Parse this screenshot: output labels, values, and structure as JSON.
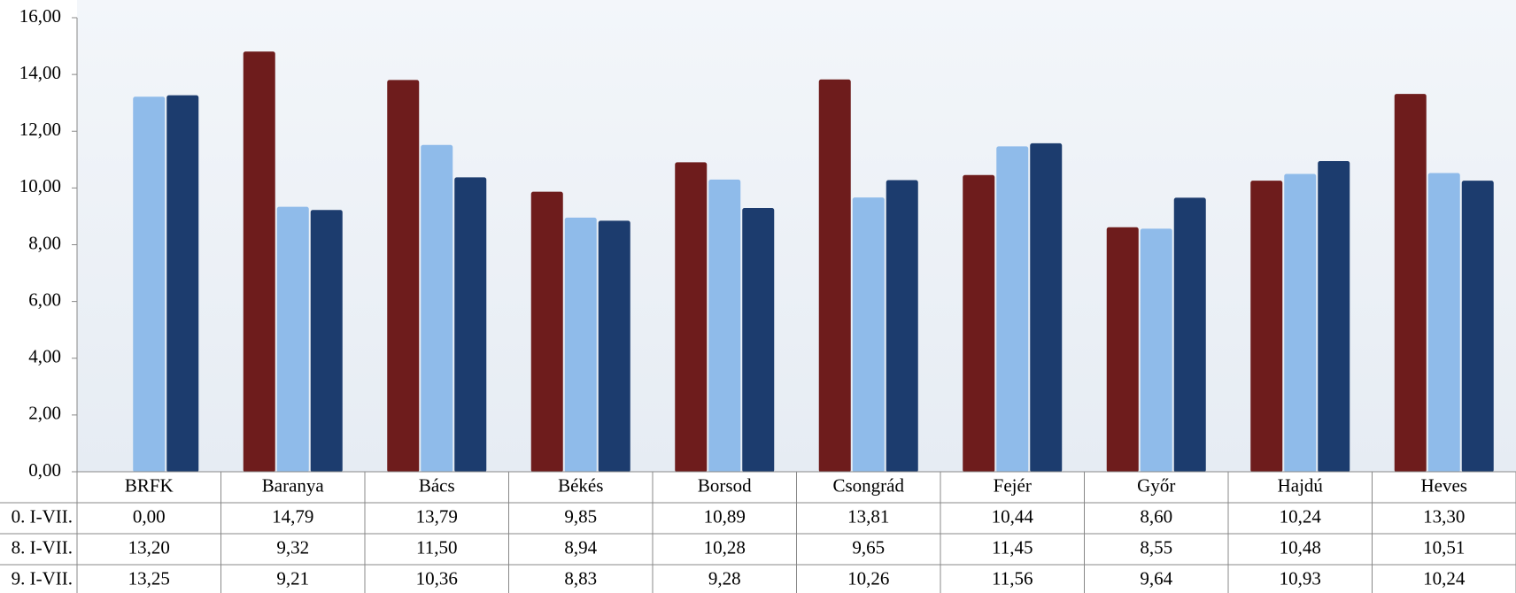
{
  "chart_data": {
    "type": "bar",
    "categories": [
      "BRFK",
      "Baranya",
      "Bács",
      "Békés",
      "Borsod",
      "Csongrád",
      "Fejér",
      "Győr",
      "Hajdú",
      "Heves"
    ],
    "series": [
      {
        "name": "0. I-VII.",
        "color": "#6e1c1c",
        "values": [
          0,
          14.79,
          13.79,
          9.85,
          10.89,
          13.81,
          10.44,
          8.6,
          10.24,
          13.3
        ],
        "value_labels": [
          "0,00",
          "14,79",
          "13,79",
          "9,85",
          "10,89",
          "13,81",
          "10,44",
          "8,60",
          "10,24",
          "13,30"
        ]
      },
      {
        "name": "8. I-VII.",
        "color": "#8fbbea",
        "values": [
          13.2,
          9.32,
          11.5,
          8.94,
          10.28,
          9.65,
          11.45,
          8.55,
          10.48,
          10.51
        ],
        "value_labels": [
          "13,20",
          "9,32",
          "11,50",
          "8,94",
          "10,28",
          "9,65",
          "11,45",
          "8,55",
          "10,48",
          "10,51"
        ]
      },
      {
        "name": "9. I-VII.",
        "color": "#1c3c6e",
        "values": [
          13.25,
          9.21,
          10.36,
          8.83,
          9.28,
          10.26,
          11.56,
          9.64,
          10.93,
          10.24
        ],
        "value_labels": [
          "13,25",
          "9,21",
          "10,36",
          "8,83",
          "9,28",
          "10,26",
          "11,56",
          "9,64",
          "10,93",
          "10,24"
        ]
      }
    ],
    "ylim": [
      0,
      16
    ],
    "yticks": [
      {
        "value": 0,
        "label": "0,00"
      },
      {
        "value": 2,
        "label": "2,00"
      },
      {
        "value": 4,
        "label": "4,00"
      },
      {
        "value": 6,
        "label": "6,00"
      },
      {
        "value": 8,
        "label": "8,00"
      },
      {
        "value": 10,
        "label": "10,00"
      },
      {
        "value": 12,
        "label": "12,00"
      },
      {
        "value": 14,
        "label": "14,00"
      },
      {
        "value": 16,
        "label": "16,00"
      }
    ],
    "grid": false
  }
}
